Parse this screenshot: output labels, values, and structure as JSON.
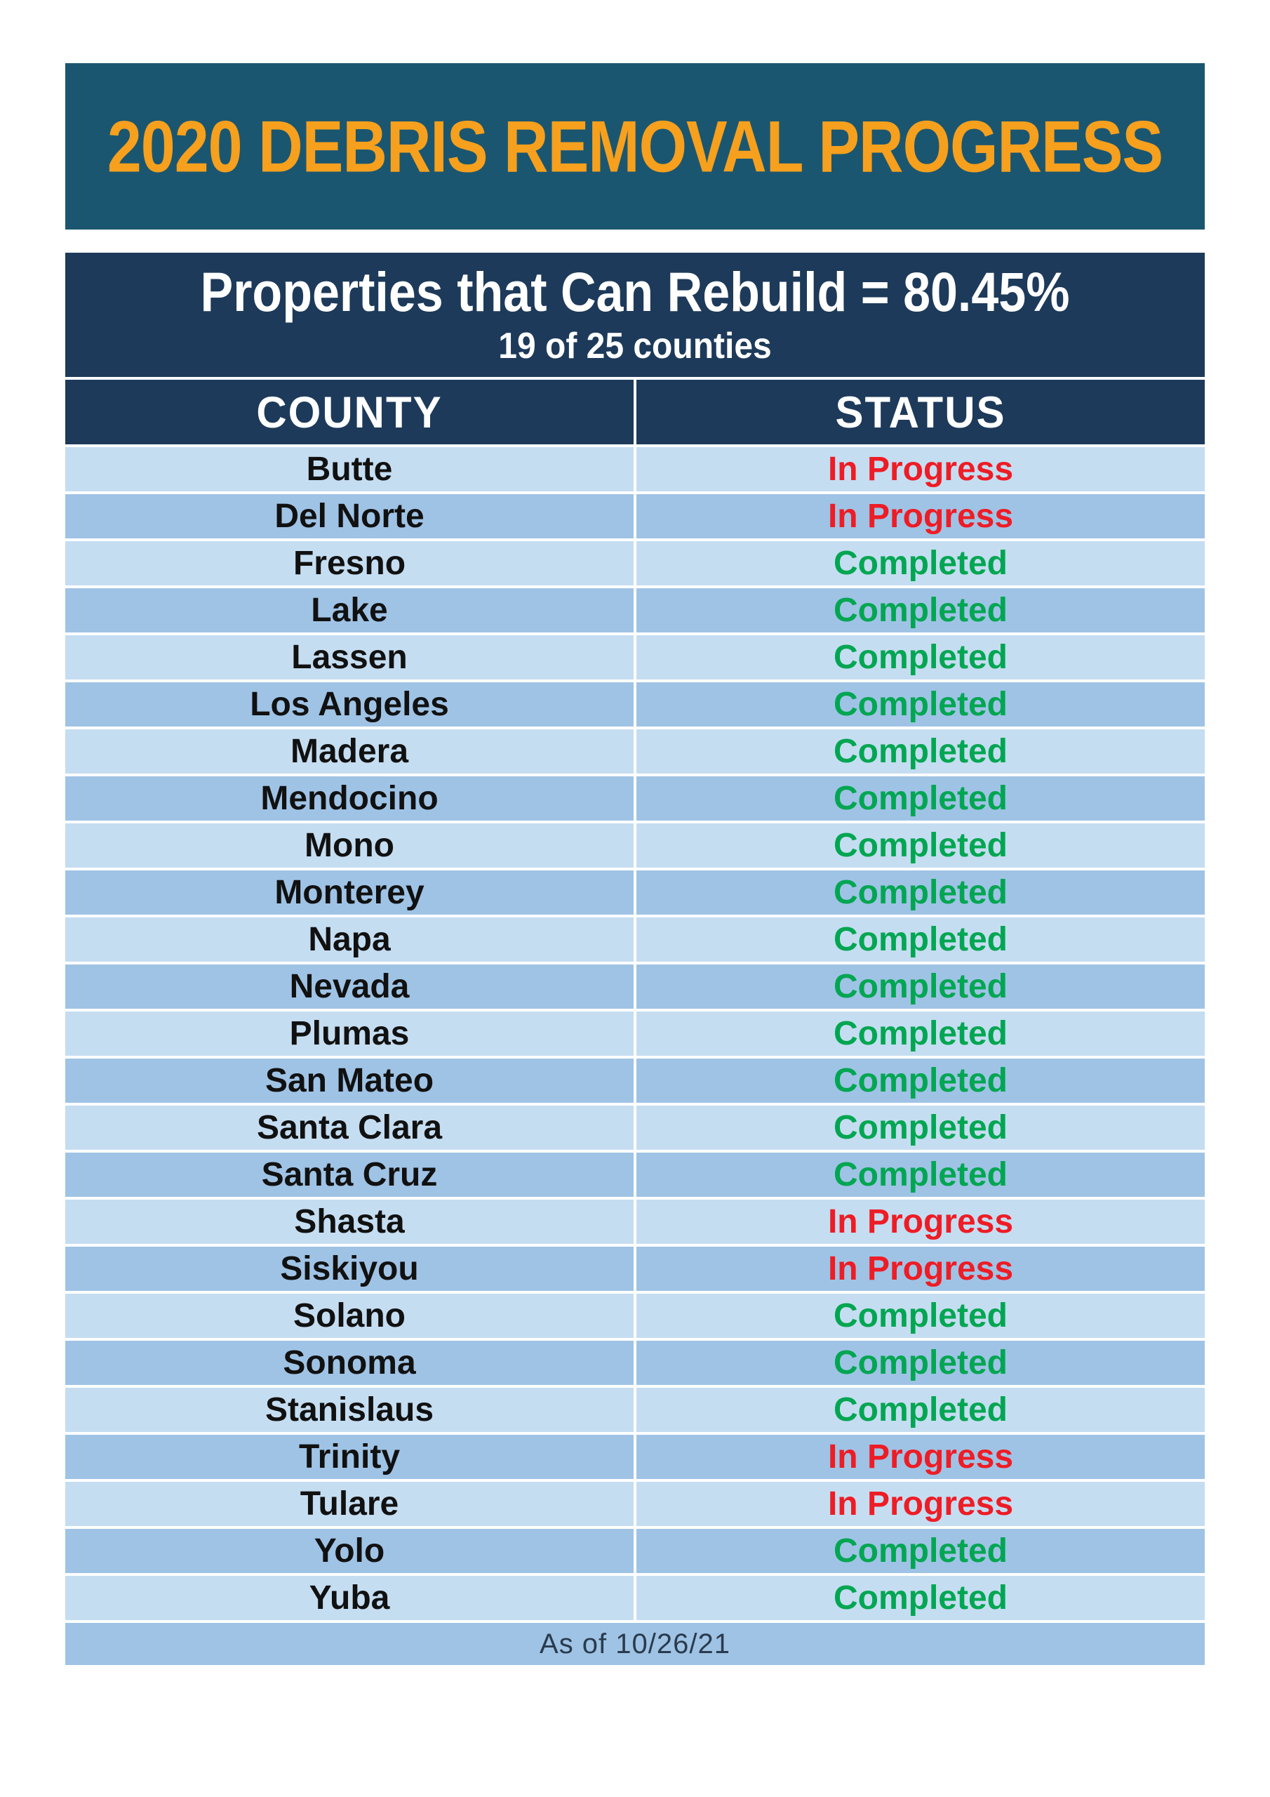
{
  "header": {
    "title": "2020 DEBRIS REMOVAL PROGRESS"
  },
  "summary": {
    "headline": "Properties that Can Rebuild = 80.45%",
    "subheadline": "19 of 25 counties"
  },
  "table": {
    "columns": {
      "county": "COUNTY",
      "status": "STATUS"
    },
    "rows": [
      {
        "county": "Butte",
        "status": "In Progress"
      },
      {
        "county": "Del Norte",
        "status": "In Progress"
      },
      {
        "county": "Fresno",
        "status": "Completed"
      },
      {
        "county": "Lake",
        "status": "Completed"
      },
      {
        "county": "Lassen",
        "status": "Completed"
      },
      {
        "county": "Los Angeles",
        "status": "Completed"
      },
      {
        "county": "Madera",
        "status": "Completed"
      },
      {
        "county": "Mendocino",
        "status": "Completed"
      },
      {
        "county": "Mono",
        "status": "Completed"
      },
      {
        "county": "Monterey",
        "status": "Completed"
      },
      {
        "county": "Napa",
        "status": "Completed"
      },
      {
        "county": "Nevada",
        "status": "Completed"
      },
      {
        "county": "Plumas",
        "status": "Completed"
      },
      {
        "county": "San Mateo",
        "status": "Completed"
      },
      {
        "county": "Santa Clara",
        "status": "Completed"
      },
      {
        "county": "Santa Cruz",
        "status": "Completed"
      },
      {
        "county": "Shasta",
        "status": "In Progress"
      },
      {
        "county": "Siskiyou",
        "status": "In Progress"
      },
      {
        "county": "Solano",
        "status": "Completed"
      },
      {
        "county": "Sonoma",
        "status": "Completed"
      },
      {
        "county": "Stanislaus",
        "status": "Completed"
      },
      {
        "county": "Trinity",
        "status": "In Progress"
      },
      {
        "county": "Tulare",
        "status": "In Progress"
      },
      {
        "county": "Yolo",
        "status": "Completed"
      },
      {
        "county": "Yuba",
        "status": "Completed"
      }
    ],
    "footnote": "As of 10/26/21"
  },
  "colors": {
    "teal_banner": "#1b5670",
    "navy_banner": "#1d3a5a",
    "title_orange": "#f6a01d",
    "row_light": "#c5ddf1",
    "row_medium": "#9fc3e5",
    "in_progress_red": "#ee1c25",
    "completed_green": "#00a651",
    "county_text": "#111111",
    "footnote_text": "#2a3b4d"
  }
}
